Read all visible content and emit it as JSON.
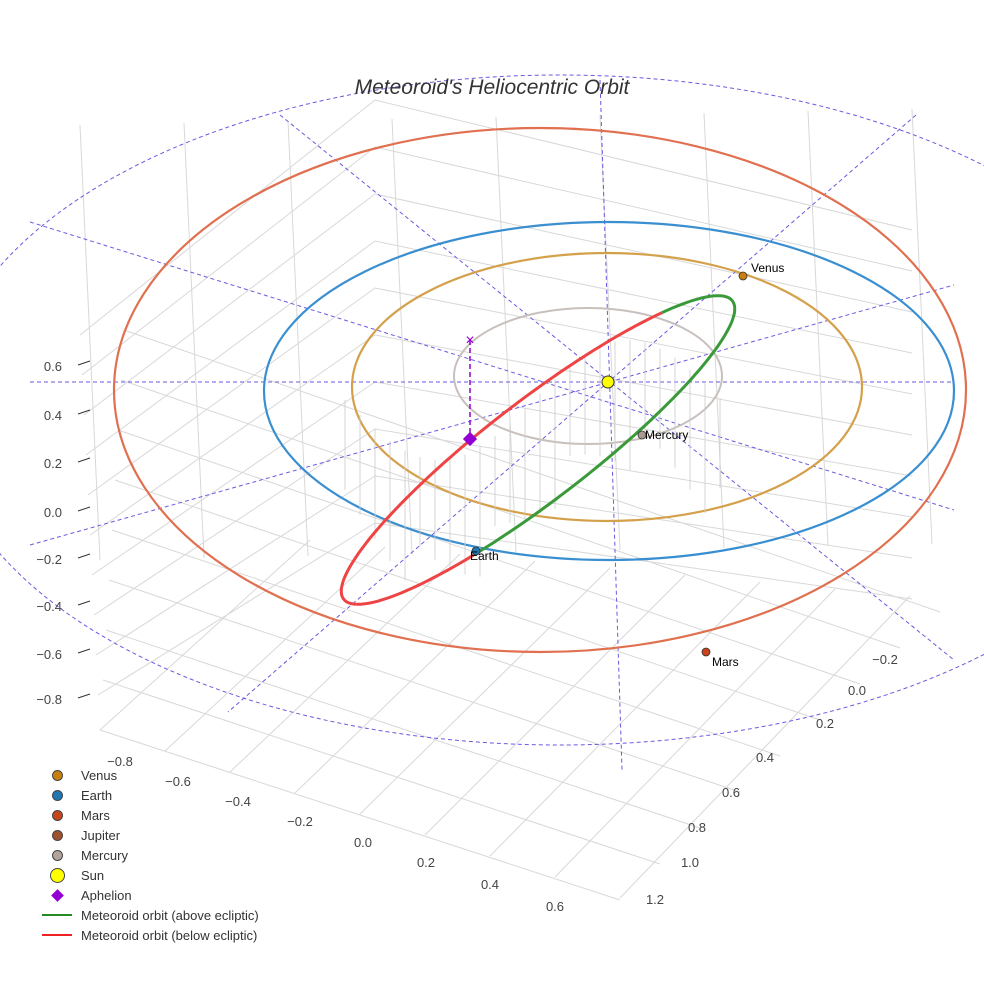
{
  "chart_data": {
    "type": "scatter3d",
    "title": "Meteoroid's Heliocentric Orbit",
    "x_ticks": [
      "−0.8",
      "−0.6",
      "−0.4",
      "−0.2",
      "0.0",
      "0.2",
      "0.4",
      "0.6"
    ],
    "y_ticks": [
      "−0.2",
      "0.0",
      "0.2",
      "0.4",
      "0.6",
      "0.8",
      "1.0",
      "1.2"
    ],
    "z_ticks": [
      "0.6",
      "0.4",
      "0.2",
      "0.0",
      "−0.2",
      "−0.4",
      "−0.6",
      "−0.8"
    ],
    "planets": [
      {
        "name": "Venus",
        "color": "#c87f12",
        "orbit_color": "#d4a04a",
        "label": "Venus"
      },
      {
        "name": "Earth",
        "color": "#1f77b4",
        "orbit_color": "#3a8fd0",
        "label": "Earth"
      },
      {
        "name": "Mars",
        "color": "#c8441a",
        "orbit_color": "#e07050",
        "label": "Mars"
      },
      {
        "name": "Jupiter",
        "color": "#a0522d",
        "orbit_color": "#6a5ae0"
      },
      {
        "name": "Mercury",
        "color": "#a89a92",
        "orbit_color": "#c8c0bc",
        "label": "Mercury"
      }
    ],
    "legend": [
      {
        "label": "Venus",
        "kind": "dot",
        "color": "#c87f12"
      },
      {
        "label": "Earth",
        "kind": "dot",
        "color": "#1f77b4"
      },
      {
        "label": "Mars",
        "kind": "dot",
        "color": "#c8441a"
      },
      {
        "label": "Jupiter",
        "kind": "dot",
        "color": "#a0522d"
      },
      {
        "label": "Mercury",
        "kind": "dot",
        "color": "#b0a49c"
      },
      {
        "label": "Sun",
        "kind": "sun",
        "color": "#ffff00"
      },
      {
        "label": "Aphelion",
        "kind": "diamond",
        "color": "#9400d3"
      },
      {
        "label": "Meteoroid orbit (above ecliptic)",
        "kind": "line",
        "color": "#228b22"
      },
      {
        "label": "Meteoroid orbit (below ecliptic)",
        "kind": "line",
        "color": "#ee2222"
      }
    ],
    "meteoroid": {
      "above_color": "#3a9a3a",
      "below_color": "#ee4444"
    }
  }
}
